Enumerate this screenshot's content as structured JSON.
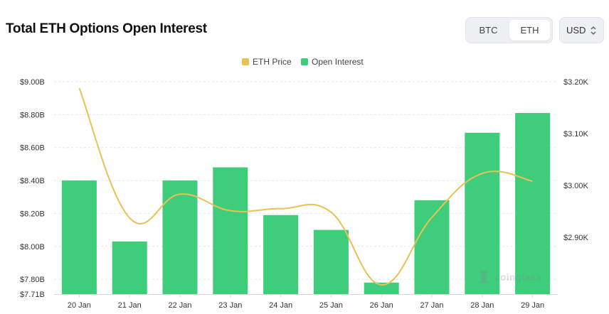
{
  "page": {
    "title": "Total ETH Options Open Interest",
    "asset_tabs": [
      {
        "label": "BTC",
        "selected": false
      },
      {
        "label": "ETH",
        "selected": true
      }
    ],
    "currency": {
      "value": "USD",
      "icon": "sort-chevrons-icon"
    },
    "watermark": "coinglass"
  },
  "colors": {
    "bar": "#3ecd7a",
    "line": "#ebc054",
    "grid": "#e4e6ea",
    "selected_tab_bg": "#ffffff"
  },
  "chart_data": {
    "type": "bar",
    "categories": [
      "20 Jan",
      "21 Jan",
      "22 Jan",
      "23 Jan",
      "24 Jan",
      "25 Jan",
      "26 Jan",
      "27 Jan",
      "28 Jan",
      "29 Jan"
    ],
    "series": [
      {
        "name": "Open Interest",
        "type": "bar",
        "axis": "left",
        "color": "#3ecd7a",
        "values": [
          8.4,
          8.03,
          8.4,
          8.48,
          8.19,
          8.1,
          7.78,
          8.28,
          8.69,
          8.81
        ]
      },
      {
        "name": "ETH Price",
        "type": "line",
        "axis": "right",
        "color": "#ebc054",
        "values": [
          3188,
          2937,
          2983,
          2951,
          2955,
          2948,
          2808,
          2938,
          3023,
          3008
        ]
      }
    ],
    "y_left": {
      "ticks": [
        "$7.71B",
        "$7.80B",
        "$8.00B",
        "$8.20B",
        "$8.40B",
        "$8.60B",
        "$8.80B",
        "$9.00B"
      ],
      "min": 7.71,
      "max": 9.0
    },
    "y_right": {
      "ticks": [
        "$2.90K",
        "$3.00K",
        "$3.10K",
        "$3.20K"
      ],
      "min": 2790,
      "max": 3200
    },
    "legend": [
      "ETH Price",
      "Open Interest"
    ],
    "legend_position": "top-center",
    "grid": "horizontal-dashed"
  }
}
